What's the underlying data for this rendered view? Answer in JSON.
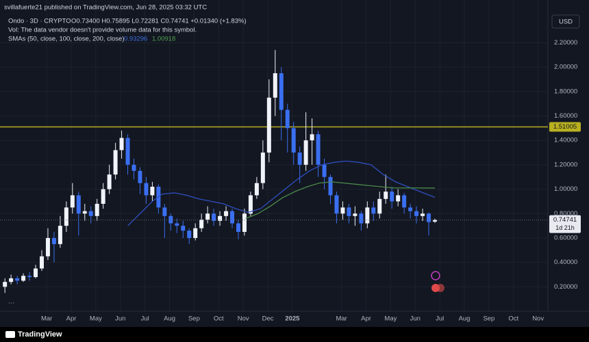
{
  "header": {
    "publisher": "svillafuerte21 published on TradingView.com, Jun 28, 2025 03:32 UTC"
  },
  "chart_data": {
    "type": "candlestick",
    "symbol": "Ondo · 3D · CRYPTO",
    "ohlc_text": "O0.73400 H0.75895 L0.72281 C0.74741 +0.01340 (+1.83%)",
    "note": "Vol: The data vendor doesn't provide volume data for this symbol.",
    "sma_label": "SMAs (50, close, 100, close, 200, close)",
    "currency": "USD",
    "countdown": "1d 21h",
    "x": [
      1.3,
      1.55,
      1.8,
      2.05,
      2.3,
      2.55,
      2.8,
      3.05,
      3.3,
      3.55,
      3.8,
      4.05,
      4.3,
      4.55,
      4.8,
      5.05,
      5.3,
      5.55,
      5.8,
      6.05,
      6.3,
      6.55,
      6.8,
      7.05,
      7.3,
      7.55,
      7.8,
      8.05,
      8.3,
      8.55,
      8.8,
      9.05,
      9.3,
      9.55,
      9.8,
      10.05,
      10.3,
      10.55,
      10.8,
      11.05,
      11.3,
      11.55,
      11.8,
      12.05,
      12.3,
      12.55,
      12.8,
      13.05,
      13.3,
      13.55,
      13.8,
      14.05,
      14.3,
      14.55,
      14.8,
      15.05,
      15.3,
      15.55,
      15.8,
      16.05,
      16.3,
      16.55,
      16.8,
      17.05,
      17.3,
      17.55,
      17.8,
      18.05,
      18.3,
      18.55,
      18.8
    ],
    "open": [
      0.2,
      0.24,
      0.27,
      0.25,
      0.29,
      0.28,
      0.35,
      0.45,
      0.6,
      0.55,
      0.7,
      0.85,
      0.95,
      0.8,
      0.82,
      0.78,
      0.88,
      1.0,
      1.12,
      1.32,
      1.42,
      1.2,
      1.15,
      1.05,
      0.95,
      1.02,
      0.85,
      0.78,
      0.72,
      0.7,
      0.66,
      0.6,
      0.68,
      0.75,
      0.8,
      0.74,
      0.78,
      0.82,
      0.72,
      0.65,
      0.8,
      0.95,
      1.05,
      1.3,
      1.75,
      1.95,
      1.65,
      1.5,
      1.3,
      1.2,
      1.4,
      1.45,
      1.2,
      1.1,
      0.95,
      0.8,
      0.85,
      0.78,
      0.8,
      0.72,
      0.85,
      0.8,
      0.92,
      0.98,
      0.9,
      0.95,
      0.85,
      0.82,
      0.78,
      0.8,
      0.734
    ],
    "high": [
      0.27,
      0.3,
      0.29,
      0.31,
      0.32,
      0.38,
      0.5,
      0.68,
      0.65,
      0.78,
      0.9,
      1.05,
      0.98,
      0.88,
      0.86,
      0.92,
      1.05,
      1.2,
      1.38,
      1.48,
      1.45,
      1.25,
      1.18,
      1.1,
      1.06,
      1.04,
      0.88,
      0.8,
      0.76,
      0.74,
      0.68,
      0.72,
      0.8,
      0.86,
      0.84,
      0.82,
      0.86,
      0.84,
      0.75,
      0.84,
      0.98,
      1.1,
      1.4,
      1.9,
      2.14,
      2.0,
      1.7,
      1.55,
      1.35,
      1.63,
      1.58,
      1.48,
      1.25,
      1.12,
      0.98,
      0.9,
      0.88,
      0.86,
      0.82,
      0.9,
      0.9,
      0.98,
      1.12,
      1.02,
      1.0,
      0.97,
      0.88,
      0.86,
      0.84,
      0.81,
      0.75895
    ],
    "low": [
      0.15,
      0.22,
      0.22,
      0.24,
      0.25,
      0.27,
      0.33,
      0.42,
      0.4,
      0.52,
      0.65,
      0.8,
      0.62,
      0.74,
      0.72,
      0.74,
      0.84,
      0.96,
      1.08,
      1.25,
      1.12,
      1.08,
      0.96,
      0.88,
      0.9,
      0.8,
      0.6,
      0.66,
      0.64,
      0.6,
      0.55,
      0.58,
      0.65,
      0.72,
      0.7,
      0.7,
      0.74,
      0.68,
      0.59,
      0.62,
      0.78,
      0.92,
      1.0,
      1.22,
      1.6,
      1.4,
      1.3,
      1.2,
      1.05,
      1.15,
      1.2,
      1.1,
      1.0,
      0.88,
      0.72,
      0.75,
      0.72,
      0.7,
      0.66,
      0.68,
      0.74,
      0.76,
      0.88,
      0.84,
      0.86,
      0.8,
      0.76,
      0.72,
      0.74,
      0.62,
      0.72281
    ],
    "close": [
      0.24,
      0.27,
      0.25,
      0.29,
      0.28,
      0.35,
      0.45,
      0.6,
      0.55,
      0.7,
      0.85,
      0.95,
      0.8,
      0.82,
      0.78,
      0.88,
      1.0,
      1.12,
      1.32,
      1.42,
      1.2,
      1.15,
      1.05,
      0.95,
      1.02,
      0.85,
      0.78,
      0.72,
      0.7,
      0.66,
      0.6,
      0.68,
      0.75,
      0.8,
      0.74,
      0.78,
      0.82,
      0.72,
      0.65,
      0.8,
      0.95,
      1.05,
      1.3,
      1.75,
      1.95,
      1.65,
      1.5,
      1.3,
      1.2,
      1.4,
      1.45,
      1.2,
      1.1,
      0.95,
      0.8,
      0.85,
      0.78,
      0.8,
      0.72,
      0.85,
      0.8,
      0.92,
      0.98,
      0.9,
      0.95,
      0.85,
      0.82,
      0.78,
      0.8,
      0.73,
      0.74741
    ],
    "up_color": "#f0f3fa",
    "down_color": "#3a6ff0",
    "series": [
      {
        "color": "#2f4fbf",
        "x": [
          6.3,
          6.8,
          7.3,
          7.7,
          8.2,
          8.7,
          9.2,
          9.7,
          10.2,
          10.7,
          11.2,
          11.7,
          12.2,
          12.7,
          13.2,
          13.7,
          14.2,
          14.7,
          15.2,
          15.7,
          16.2,
          16.7,
          17.2,
          17.7,
          18.2,
          18.8
        ],
        "values": [
          0.7,
          0.8,
          0.9,
          0.96,
          0.97,
          0.95,
          0.92,
          0.9,
          0.88,
          0.84,
          0.81,
          0.84,
          0.92,
          1.0,
          1.08,
          1.15,
          1.2,
          1.22,
          1.23,
          1.22,
          1.2,
          1.12,
          1.06,
          1.02,
          0.98,
          0.93296
        ]
      },
      {
        "color": "#4a8a4a",
        "x": [
          11.1,
          11.6,
          12.1,
          12.6,
          13.1,
          13.6,
          14.1,
          14.6,
          15.1,
          15.6,
          16.1,
          16.6,
          17.1,
          17.6,
          18.1,
          18.8
        ],
        "values": [
          0.76,
          0.8,
          0.86,
          0.93,
          0.98,
          1.02,
          1.05,
          1.06,
          1.05,
          1.04,
          1.03,
          1.02,
          1.01,
          1.01,
          1.01,
          1.00918
        ]
      }
    ],
    "hline": {
      "value": 1.51005,
      "color": "#b8b020"
    },
    "ylim": [
      0,
      2.55
    ],
    "yticks": [
      {
        "value": 0.2,
        "label": "0.20000"
      },
      {
        "value": 0.4,
        "label": "0.40000"
      },
      {
        "value": 0.6,
        "label": "0.60000"
      },
      {
        "value": 0.8,
        "label": "0.80000"
      },
      {
        "value": 1.0,
        "label": "1.00000"
      },
      {
        "value": 1.2,
        "label": "1.20000"
      },
      {
        "value": 1.4,
        "label": "1.40000"
      },
      {
        "value": 1.6,
        "label": "1.60000"
      },
      {
        "value": 1.8,
        "label": "1.80000"
      },
      {
        "value": 2.0,
        "label": "2.00000"
      },
      {
        "value": 2.2,
        "label": "2.20000"
      }
    ],
    "xlim": [
      1.1,
      23.4
    ],
    "xticks": [
      {
        "value": 3,
        "label": "Mar"
      },
      {
        "value": 4,
        "label": "Apr"
      },
      {
        "value": 5,
        "label": "May"
      },
      {
        "value": 6,
        "label": "Jun"
      },
      {
        "value": 7,
        "label": "Jul"
      },
      {
        "value": 8,
        "label": "Aug"
      },
      {
        "value": 9,
        "label": "Sep"
      },
      {
        "value": 10,
        "label": "Oct"
      },
      {
        "value": 11,
        "label": "Nov"
      },
      {
        "value": 12,
        "label": "Dec"
      },
      {
        "value": 13,
        "label": "2025"
      },
      {
        "value": 15,
        "label": "Mar"
      },
      {
        "value": 16,
        "label": "Apr"
      },
      {
        "value": 17,
        "label": "May"
      },
      {
        "value": 18,
        "label": "Jun"
      },
      {
        "value": 19,
        "label": "Jul"
      },
      {
        "value": 20,
        "label": "Aug"
      },
      {
        "value": 21,
        "label": "Sep"
      },
      {
        "value": 22,
        "label": "Oct"
      },
      {
        "value": 23,
        "label": "Nov"
      }
    ],
    "grid": true
  },
  "footer": {
    "brand": "TradingView"
  }
}
